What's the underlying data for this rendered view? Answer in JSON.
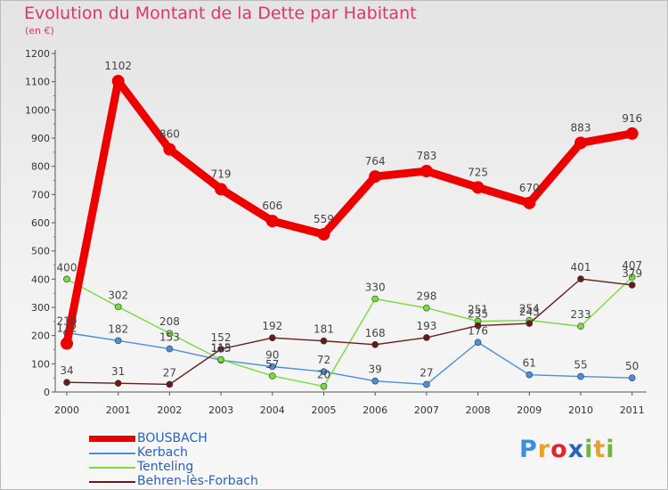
{
  "title": "Evolution du Montant de la Dette par Habitant",
  "subtitle": "(en €)",
  "logo_text": "Proxiti",
  "chart_data": {
    "type": "line",
    "title": "Evolution du Montant de la Dette par Habitant",
    "ylabel": "(en €)",
    "xlabel": "",
    "ylim": [
      0,
      1200
    ],
    "yticks": [
      0,
      100,
      200,
      300,
      400,
      500,
      600,
      700,
      800,
      900,
      1000,
      1100,
      1200
    ],
    "ytick_labels": [
      "0",
      "100",
      "200",
      "300",
      "400",
      "500",
      "600",
      "700",
      "800",
      "900",
      "1000",
      "1100",
      "1200"
    ],
    "categories": [
      "2000",
      "2001",
      "2002",
      "2003",
      "2004",
      "2005",
      "2006",
      "2007",
      "2008",
      "2009",
      "2010",
      "2011"
    ],
    "grid": false,
    "legend_position": "bottom-left",
    "series": [
      {
        "name": "BOUSBACH",
        "color": "#ee0000",
        "values": [
          172,
          1102,
          860,
          719,
          606,
          559,
          764,
          783,
          725,
          670,
          883,
          916
        ],
        "labels": [
          "172",
          "1102",
          "860",
          "719",
          "606",
          "559",
          "764",
          "783",
          "725",
          "670",
          "883",
          "916"
        ]
      },
      {
        "name": "Kerbach",
        "color": "#4a90d9",
        "values": [
          210,
          182,
          153,
          113,
          90,
          72,
          39,
          27,
          176,
          61,
          55,
          50
        ],
        "labels": [
          "210",
          "182",
          "153",
          "113",
          "90",
          "72",
          "39",
          "27",
          "176",
          "61",
          "55",
          "50"
        ]
      },
      {
        "name": "Tenteling",
        "color": "#77dd3a",
        "values": [
          400,
          302,
          208,
          115,
          57,
          20,
          330,
          298,
          251,
          254,
          233,
          407
        ],
        "labels": [
          "400",
          "302",
          "208",
          "115",
          "57",
          "20",
          "330",
          "298",
          "251",
          "254",
          "233",
          "407"
        ]
      },
      {
        "name": "Behren-lès-Forbach",
        "color": "#6b1a1a",
        "values": [
          34,
          31,
          27,
          152,
          192,
          181,
          168,
          193,
          235,
          243,
          401,
          379
        ],
        "labels": [
          "34",
          "31",
          "27",
          "152",
          "192",
          "181",
          "168",
          "193",
          "235",
          "243",
          "401",
          "379"
        ]
      }
    ]
  }
}
